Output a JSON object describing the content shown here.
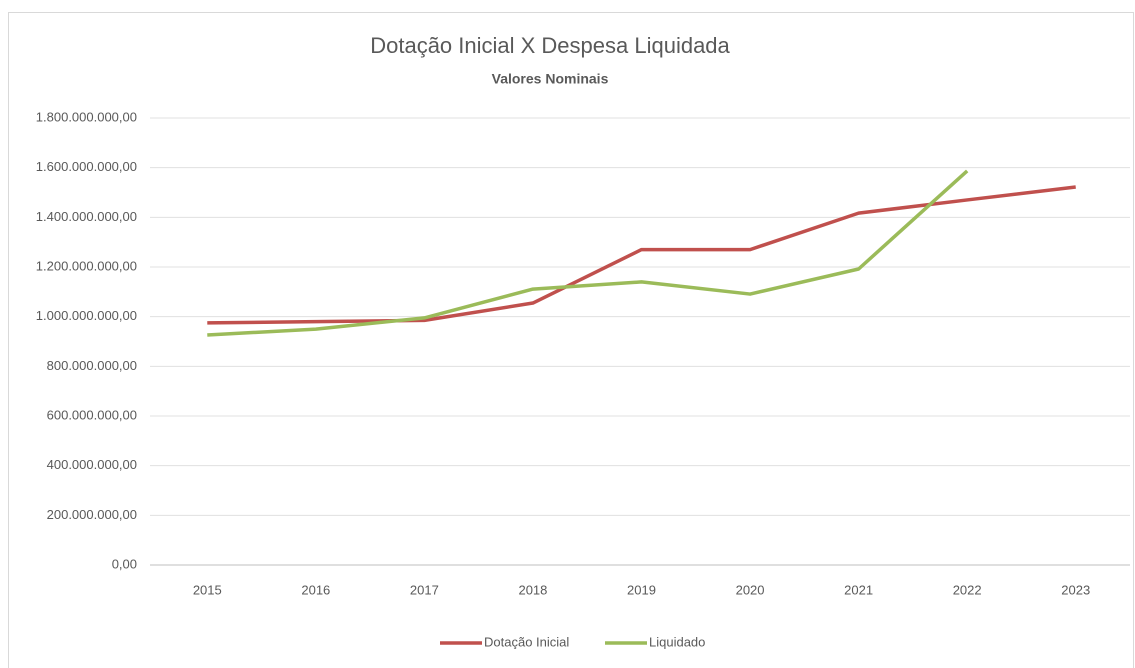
{
  "chart_data": {
    "type": "line",
    "title": "Dotação Inicial  X Despesa Liquidada",
    "subtitle": "Valores Nominais",
    "categories": [
      "2015",
      "2016",
      "2017",
      "2018",
      "2019",
      "2020",
      "2021",
      "2022",
      "2023"
    ],
    "series": [
      {
        "name": "Dotação Inicial",
        "color": "#c0504d",
        "values": [
          975000000,
          980000000,
          985000000,
          1055000000,
          1270000000,
          1270000000,
          1417000000,
          1470000000,
          1522000000
        ]
      },
      {
        "name": "Liquidado",
        "color": "#9bbb59",
        "values": [
          926000000,
          950000000,
          995000000,
          1111000000,
          1140000000,
          1091000000,
          1192000000,
          1587000000,
          null
        ]
      }
    ],
    "ylim": [
      0,
      1800000000
    ],
    "yticks": [
      {
        "value": 0,
        "label": "0,00"
      },
      {
        "value": 200000000,
        "label": "200.000.000,00"
      },
      {
        "value": 400000000,
        "label": "400.000.000,00"
      },
      {
        "value": 600000000,
        "label": "600.000.000,00"
      },
      {
        "value": 800000000,
        "label": "800.000.000,00"
      },
      {
        "value": 1000000000,
        "label": "1.000.000.000,00"
      },
      {
        "value": 1200000000,
        "label": "1.200.000.000,00"
      },
      {
        "value": 1400000000,
        "label": "1.400.000.000,00"
      },
      {
        "value": 1600000000,
        "label": "1.600.000.000,00"
      },
      {
        "value": 1800000000,
        "label": "1.800.000.000,00"
      }
    ],
    "grid": true,
    "legend": "bottom"
  }
}
